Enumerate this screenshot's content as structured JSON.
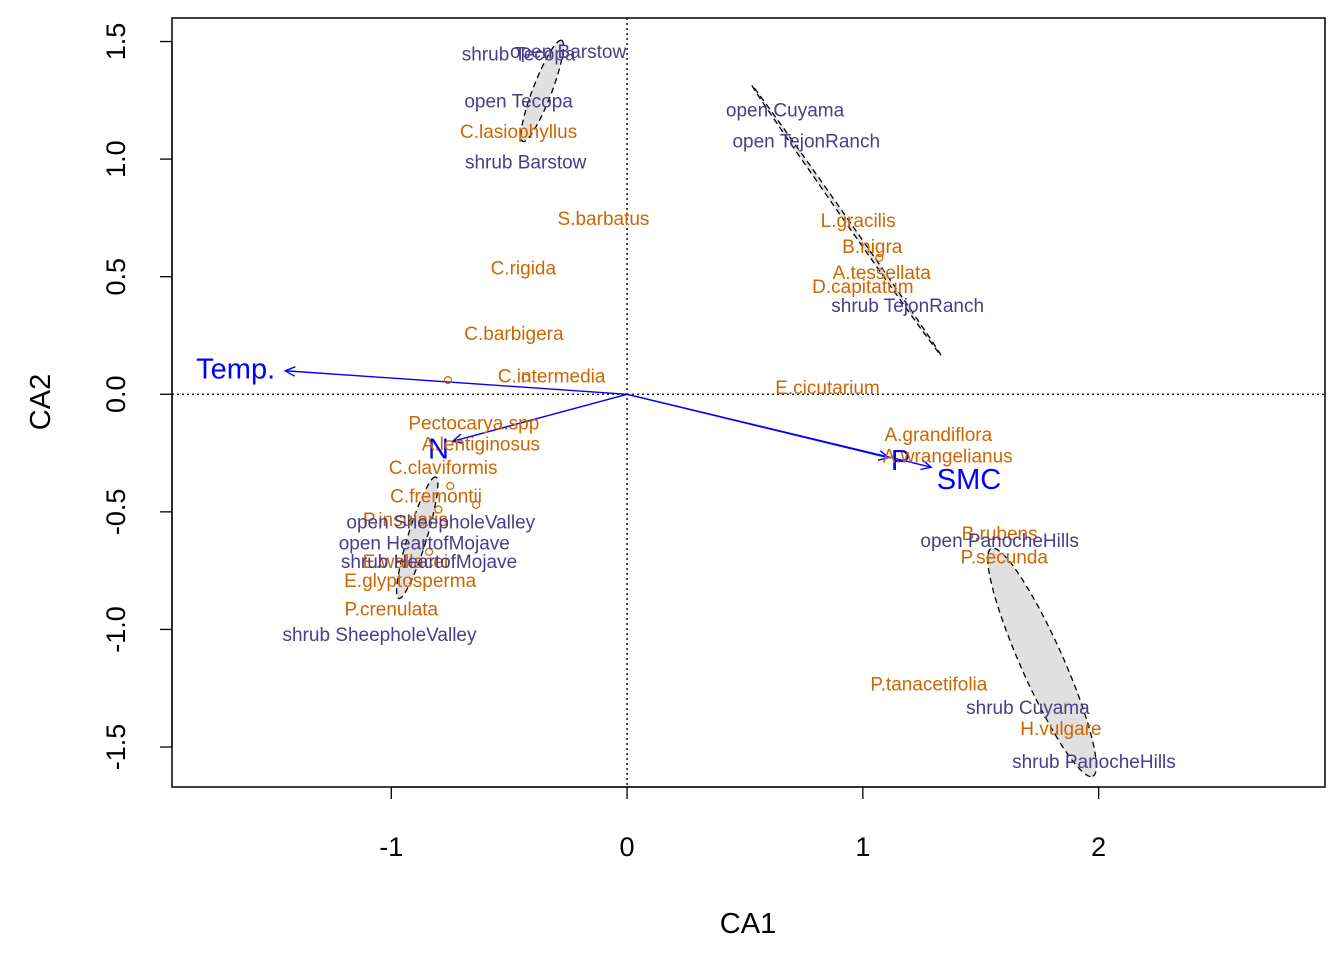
{
  "chart_data": {
    "type": "scatter",
    "xlabel": "CA1",
    "ylabel": "CA2",
    "xlim": [
      -1.93,
      2.96
    ],
    "ylim": [
      -1.67,
      1.6
    ],
    "x_ticks": [
      -1,
      0,
      1,
      2
    ],
    "y_ticks": [
      -1.5,
      -1.0,
      -0.5,
      0.0,
      0.5,
      1.0,
      1.5
    ],
    "reference_lines": {
      "x": 0,
      "y": 0,
      "style": "dotted"
    },
    "colors": {
      "sites": "#483D8B",
      "species": "#CD6600",
      "vectors": "#0000FF",
      "ellipse_fill": "#E0E0E0",
      "ellipse_stroke": "#000000"
    },
    "sites": [
      {
        "label": "open Barstow",
        "x": -0.25,
        "y": 1.46
      },
      {
        "label": "shrub Tecopa",
        "x": -0.46,
        "y": 1.45
      },
      {
        "label": "open Tecopa",
        "x": -0.46,
        "y": 1.25
      },
      {
        "label": "shrub Barstow",
        "x": -0.43,
        "y": 0.99
      },
      {
        "label": "open Cuyama",
        "x": 0.67,
        "y": 1.21
      },
      {
        "label": "open TejonRanch",
        "x": 0.76,
        "y": 1.08
      },
      {
        "label": "shrub TejonRanch",
        "x": 1.19,
        "y": 0.38
      },
      {
        "label": "open SheepholeValley",
        "x": -0.79,
        "y": -0.54
      },
      {
        "label": "open HeartofMojave",
        "x": -0.86,
        "y": -0.63
      },
      {
        "label": "shrub HeartofMojave",
        "x": -0.84,
        "y": -0.71
      },
      {
        "label": "shrub SheepholeValley",
        "x": -1.05,
        "y": -1.02
      },
      {
        "label": "open PanocheHills",
        "x": 1.58,
        "y": -0.62
      },
      {
        "label": "shrub Cuyama",
        "x": 1.7,
        "y": -1.33
      },
      {
        "label": "shrub PanocheHills",
        "x": 1.98,
        "y": -1.56
      }
    ],
    "species": [
      {
        "label": "C.lasiophyllus",
        "x": -0.46,
        "y": 1.12
      },
      {
        "label": "S.barbatus",
        "x": -0.1,
        "y": 0.75
      },
      {
        "label": "C.rigida",
        "x": -0.44,
        "y": 0.54
      },
      {
        "label": "C.barbigera",
        "x": -0.48,
        "y": 0.26
      },
      {
        "label": "C.intermedia",
        "x": -0.32,
        "y": 0.08
      },
      {
        "label": "L.gracilis",
        "x": 0.98,
        "y": 0.74
      },
      {
        "label": "B.nigra",
        "x": 1.04,
        "y": 0.63
      },
      {
        "label": "A.tessellata",
        "x": 1.08,
        "y": 0.52
      },
      {
        "label": "D.capitatum",
        "x": 1.0,
        "y": 0.46
      },
      {
        "label": "E.cicutarium",
        "x": 0.85,
        "y": 0.03
      },
      {
        "label": "Pectocarya.spp",
        "x": -0.65,
        "y": -0.12
      },
      {
        "label": "A.lentiginosus",
        "x": -0.62,
        "y": -0.21
      },
      {
        "label": "C.claviformis",
        "x": -0.78,
        "y": -0.31
      },
      {
        "label": "C.fremontii",
        "x": -0.81,
        "y": -0.43
      },
      {
        "label": "P.insularis",
        "x": -0.94,
        "y": -0.53
      },
      {
        "label": "E.wallacei",
        "x": -0.94,
        "y": -0.71
      },
      {
        "label": "E.glyptosperma",
        "x": -0.92,
        "y": -0.79
      },
      {
        "label": "P.crenulata",
        "x": -1.0,
        "y": -0.91
      },
      {
        "label": "A.grandiflora",
        "x": 1.32,
        "y": -0.17
      },
      {
        "label": "A.wrangelianus",
        "x": 1.36,
        "y": -0.26
      },
      {
        "label": "B.rubens",
        "x": 1.58,
        "y": -0.59
      },
      {
        "label": "P.secunda",
        "x": 1.6,
        "y": -0.69
      },
      {
        "label": "P.tanacetifolia",
        "x": 1.28,
        "y": -1.23
      },
      {
        "label": "H.vulgare",
        "x": 1.84,
        "y": -1.42
      }
    ],
    "species_points": [
      {
        "x": -0.76,
        "y": 0.06
      },
      {
        "x": -0.43,
        "y": 0.07
      },
      {
        "x": 1.07,
        "y": 0.58
      },
      {
        "x": -0.75,
        "y": -0.39
      },
      {
        "x": -0.64,
        "y": -0.47
      },
      {
        "x": -0.8,
        "y": -0.49
      },
      {
        "x": -0.84,
        "y": -0.67
      }
    ],
    "env_vectors": [
      {
        "label": "Temp.",
        "x": -1.45,
        "y": 0.1,
        "label_x": -1.66,
        "label_y": 0.11
      },
      {
        "label": "N",
        "x": -0.74,
        "y": -0.2,
        "label_x": -0.8,
        "label_y": -0.23
      },
      {
        "label": "P",
        "x": 1.11,
        "y": -0.27,
        "label_x": 1.16,
        "label_y": -0.28
      },
      {
        "label": "SMC",
        "x": 1.29,
        "y": -0.31,
        "label_x": 1.45,
        "label_y": -0.36
      }
    ],
    "ellipses": [
      {
        "cx": -0.36,
        "cy": 1.29,
        "rx": 0.23,
        "ry": 0.04,
        "angle_deg": 69
      },
      {
        "cx": 0.93,
        "cy": 0.74,
        "rx": 0.7,
        "ry": 0.008,
        "angle_deg": -55
      },
      {
        "cx": -0.89,
        "cy": -0.61,
        "rx": 0.27,
        "ry": 0.04,
        "angle_deg": 73
      },
      {
        "cx": 1.76,
        "cy": -1.14,
        "rx": 0.53,
        "ry": 0.09,
        "angle_deg": -66
      }
    ]
  }
}
